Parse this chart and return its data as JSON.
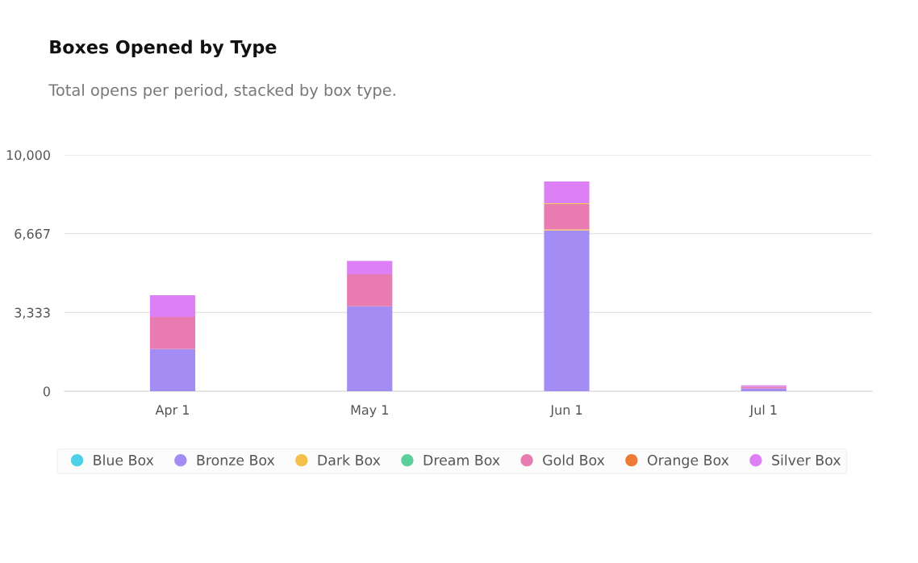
{
  "chart_data": {
    "type": "bar",
    "title": "Boxes Opened by Type",
    "subtitle": "Total opens per period, stacked by box type.",
    "categories": [
      "Apr 1",
      "May 1",
      "Jun 1",
      "Jul 1"
    ],
    "stacked": true,
    "ylim": [
      0,
      10000
    ],
    "yticks": [
      0,
      {
        "value": 3333,
        "label": "3,333"
      },
      {
        "value": 6667,
        "label": "6,667"
      },
      {
        "value": 10000,
        "label": "10,000"
      }
    ],
    "grid": "y",
    "legend": "bottom",
    "series": [
      {
        "name": "Blue Box",
        "color": "#4fd1e5",
        "values": [
          0,
          0,
          0,
          0
        ]
      },
      {
        "name": "Bronze Box",
        "color": "#a38cf4",
        "values": [
          1790,
          3590,
          6800,
          120
        ]
      },
      {
        "name": "Dark Box",
        "color": "#f5c04a",
        "values": [
          0,
          0,
          40,
          0
        ]
      },
      {
        "name": "Dream Box",
        "color": "#5ccf9a",
        "values": [
          0,
          0,
          0,
          0
        ]
      },
      {
        "name": "Gold Box",
        "color": "#e87bb0",
        "values": [
          1350,
          1360,
          1080,
          70
        ]
      },
      {
        "color": "#6ea8f7",
        "values": [
          0,
          0,
          0,
          null
        ]
      },
      {
        "name": "Orange Box",
        "color": "#ef7a35",
        "values": [
          0,
          0,
          0,
          0
        ]
      },
      {
        "color": "#f6d04d",
        "values": [
          0,
          0,
          30,
          0
        ]
      },
      {
        "color": "#6ed98a",
        "values": [
          0,
          0,
          0,
          0
        ]
      },
      {
        "name": "Silver Box",
        "color": "#dd80f5",
        "values": [
          920,
          560,
          920,
          60
        ]
      }
    ]
  }
}
